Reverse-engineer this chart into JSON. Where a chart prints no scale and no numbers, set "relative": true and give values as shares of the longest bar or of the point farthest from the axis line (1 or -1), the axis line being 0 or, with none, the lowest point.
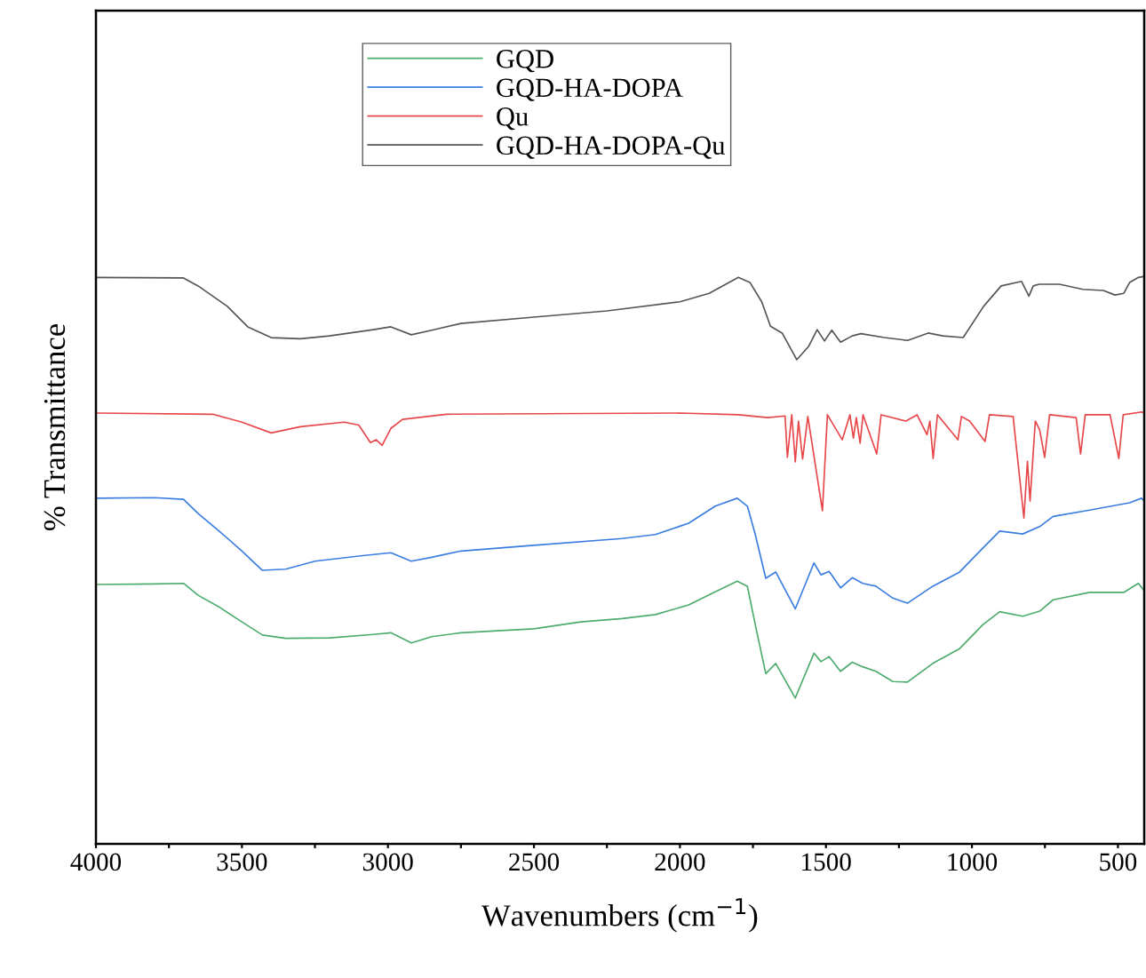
{
  "chart_data": {
    "type": "line",
    "relative": true,
    "xlabel": "Wavenumbers (cm$^{−1}$)",
    "ylabel": "% Transmittance",
    "xlim": [
      4000,
      410
    ],
    "xticks": [
      4000,
      {
        "value": 3750,
        "label": null
      },
      3500,
      {
        "value": 3250,
        "label": null
      },
      3000,
      {
        "value": 2750,
        "label": null
      },
      2500,
      {
        "value": 2250,
        "label": null
      },
      2000,
      {
        "value": 1750,
        "label": null
      },
      1500,
      {
        "value": 1250,
        "label": null
      },
      1000,
      {
        "value": 750,
        "label": null
      },
      500
    ],
    "tick_labels": "x",
    "grid": false,
    "legend": "top",
    "marker": "none",
    "line_style": "solid",
    "series": [
      {
        "name": "GQD",
        "color": "#4dab6d",
        "x": [
          4000,
          3800,
          3700,
          3650,
          3580,
          3500,
          3430,
          3350,
          3200,
          3050,
          2990,
          2920,
          2850,
          2750,
          2500,
          2340,
          2198,
          2084,
          1970,
          1879,
          1804,
          1769,
          1742,
          1706,
          1672,
          1605,
          1541,
          1517,
          1489,
          1450,
          1410,
          1374,
          1329,
          1271,
          1221,
          1134,
          1042,
          963,
          905,
          826,
          768,
          722,
          597,
          480,
          430,
          410
        ],
        "values": [
          0.457,
          0.458,
          0.459,
          0.438,
          0.418,
          0.391,
          0.368,
          0.362,
          0.363,
          0.369,
          0.372,
          0.354,
          0.365,
          0.372,
          0.379,
          0.391,
          0.397,
          0.404,
          0.421,
          0.444,
          0.463,
          0.454,
          0.386,
          0.3,
          0.318,
          0.257,
          0.336,
          0.321,
          0.33,
          0.304,
          0.32,
          0.312,
          0.304,
          0.286,
          0.285,
          0.318,
          0.344,
          0.386,
          0.409,
          0.401,
          0.41,
          0.43,
          0.443,
          0.443,
          0.459,
          0.446
        ]
      },
      {
        "name": "GQD-HA-DOPA",
        "color": "#3b7de0",
        "x": [
          4000,
          3800,
          3700,
          3650,
          3580,
          3500,
          3430,
          3350,
          3250,
          3100,
          2990,
          2920,
          2850,
          2750,
          2500,
          2198,
          2084,
          1970,
          1879,
          1804,
          1769,
          1742,
          1706,
          1672,
          1605,
          1541,
          1517,
          1489,
          1450,
          1410,
          1374,
          1329,
          1271,
          1221,
          1134,
          1042,
          963,
          905,
          826,
          768,
          722,
          597,
          460,
          419,
          410
        ],
        "values": [
          0.609,
          0.61,
          0.607,
          0.582,
          0.552,
          0.516,
          0.482,
          0.484,
          0.498,
          0.507,
          0.513,
          0.498,
          0.505,
          0.516,
          0.526,
          0.538,
          0.545,
          0.565,
          0.595,
          0.609,
          0.595,
          0.545,
          0.468,
          0.479,
          0.414,
          0.495,
          0.474,
          0.48,
          0.451,
          0.469,
          0.459,
          0.454,
          0.433,
          0.424,
          0.454,
          0.479,
          0.521,
          0.551,
          0.546,
          0.559,
          0.577,
          0.588,
          0.601,
          0.609,
          0.604
        ]
      },
      {
        "name": "Qu",
        "color": "#e8474a",
        "x": [
          4000,
          3600,
          3500,
          3400,
          3300,
          3150,
          3100,
          3060,
          3040,
          3020,
          2990,
          2950,
          2800,
          2000,
          1800,
          1700,
          1640,
          1632,
          1617,
          1605,
          1594,
          1580,
          1562,
          1512,
          1495,
          1444,
          1418,
          1406,
          1396,
          1383,
          1373,
          1326,
          1311,
          1226,
          1188,
          1154,
          1144,
          1133,
          1118,
          1048,
          1036,
          1008,
          955,
          940,
          859,
          822,
          810,
          801,
          783,
          768,
          751,
          734,
          643,
          628,
          612,
          527,
          497,
          482,
          419,
          410
        ],
        "values": [
          0.759,
          0.757,
          0.743,
          0.724,
          0.735,
          0.743,
          0.738,
          0.707,
          0.712,
          0.702,
          0.732,
          0.748,
          0.757,
          0.759,
          0.756,
          0.751,
          0.754,
          0.681,
          0.756,
          0.673,
          0.745,
          0.678,
          0.753,
          0.587,
          0.756,
          0.712,
          0.756,
          0.715,
          0.751,
          0.706,
          0.756,
          0.687,
          0.756,
          0.745,
          0.756,
          0.721,
          0.745,
          0.679,
          0.756,
          0.712,
          0.753,
          0.745,
          0.709,
          0.756,
          0.753,
          0.574,
          0.674,
          0.604,
          0.745,
          0.729,
          0.681,
          0.756,
          0.751,
          0.687,
          0.756,
          0.756,
          0.679,
          0.756,
          0.761,
          0.759
        ]
      },
      {
        "name": "GQD-HA-DOPA-Qu",
        "color": "#555555",
        "x": [
          4000,
          3700,
          3650,
          3550,
          3480,
          3400,
          3300,
          3200,
          3050,
          2990,
          2920,
          2850,
          2750,
          2500,
          2250,
          2000,
          1900,
          1800,
          1760,
          1720,
          1690,
          1650,
          1600,
          1560,
          1530,
          1505,
          1480,
          1450,
          1410,
          1380,
          1300,
          1220,
          1150,
          1100,
          1030,
          960,
          900,
          830,
          805,
          790,
          770,
          700,
          620,
          550,
          510,
          480,
          460,
          430,
          410
        ],
        "values": [
          0.998,
          0.997,
          0.983,
          0.947,
          0.911,
          0.892,
          0.89,
          0.895,
          0.906,
          0.911,
          0.897,
          0.905,
          0.917,
          0.928,
          0.939,
          0.955,
          0.97,
          0.998,
          0.989,
          0.955,
          0.912,
          0.9,
          0.853,
          0.876,
          0.906,
          0.886,
          0.905,
          0.884,
          0.895,
          0.899,
          0.892,
          0.887,
          0.9,
          0.895,
          0.892,
          0.947,
          0.983,
          0.991,
          0.965,
          0.983,
          0.986,
          0.986,
          0.977,
          0.975,
          0.967,
          0.97,
          0.989,
          0.998,
          1.0
        ]
      }
    ]
  }
}
